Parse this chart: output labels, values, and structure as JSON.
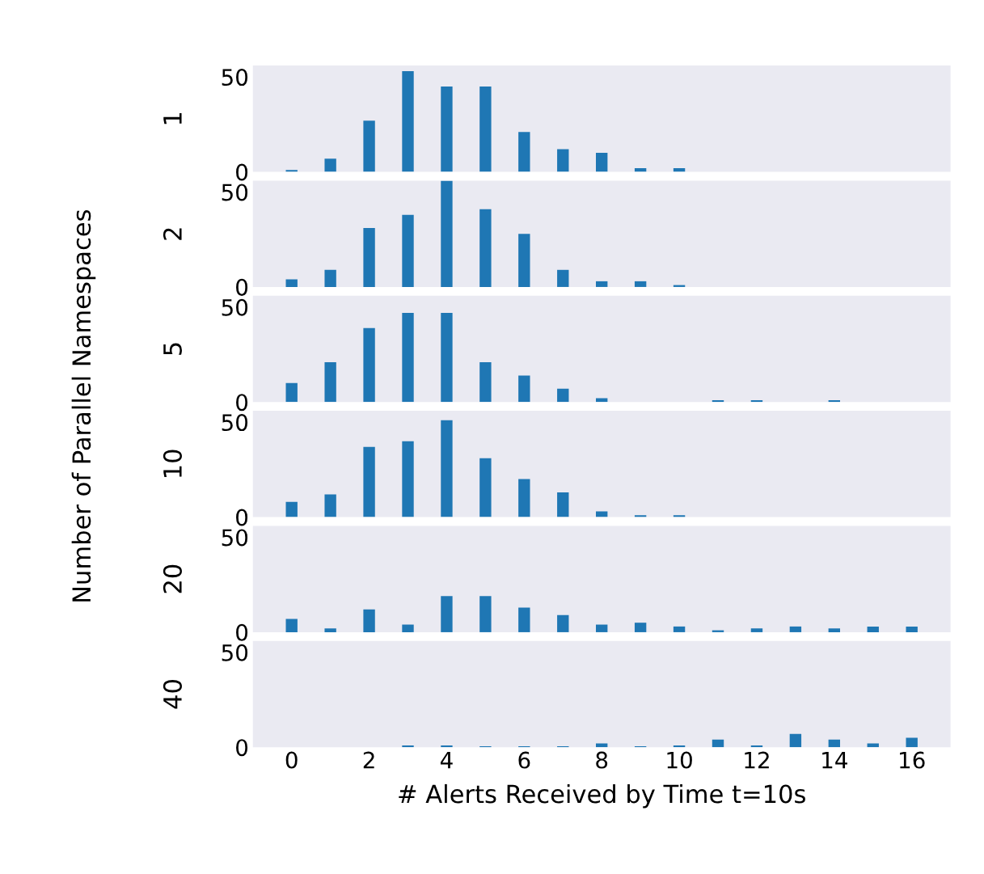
{
  "chart_data": [
    {
      "type": "bar",
      "ylabel": "1",
      "annotations": [
        "Number of Parallel Namespaces"
      ],
      "x": [
        0,
        1,
        2,
        3,
        4,
        5,
        6,
        7,
        8,
        9,
        10
      ],
      "values": [
        1,
        7,
        27,
        53,
        45,
        45,
        21,
        12,
        10,
        2,
        2
      ],
      "color": "#1f77b4",
      "xlim": [
        -1,
        17
      ],
      "ylim": [
        0,
        56
      ],
      "yticks": [
        0,
        50
      ],
      "tick_labels": "y",
      "grid": false
    },
    {
      "type": "bar",
      "ylabel": "2",
      "x": [
        0,
        1,
        2,
        3,
        4,
        5,
        6,
        7,
        8,
        9,
        10
      ],
      "values": [
        4,
        9,
        31,
        38,
        56,
        41,
        28,
        9,
        3,
        3,
        1
      ],
      "color": "#1f77b4",
      "xlim": [
        -1,
        17
      ],
      "ylim": [
        0,
        56
      ],
      "yticks": [
        0,
        50
      ],
      "tick_labels": "y",
      "grid": false
    },
    {
      "type": "bar",
      "ylabel": "5",
      "x": [
        0,
        1,
        2,
        3,
        4,
        5,
        6,
        7,
        8,
        11,
        12,
        14
      ],
      "values": [
        10,
        21,
        39,
        47,
        47,
        21,
        14,
        7,
        2,
        1,
        1,
        1
      ],
      "color": "#1f77b4",
      "xlim": [
        -1,
        17
      ],
      "ylim": [
        0,
        56
      ],
      "yticks": [
        0,
        50
      ],
      "tick_labels": "y",
      "grid": false
    },
    {
      "type": "bar",
      "ylabel": "10",
      "x": [
        0,
        1,
        2,
        3,
        4,
        5,
        6,
        7,
        8,
        9,
        10
      ],
      "values": [
        8,
        12,
        37,
        40,
        51,
        31,
        20,
        13,
        3,
        1,
        1
      ],
      "color": "#1f77b4",
      "xlim": [
        -1,
        17
      ],
      "ylim": [
        0,
        56
      ],
      "yticks": [
        0,
        50
      ],
      "tick_labels": "y",
      "grid": false
    },
    {
      "type": "bar",
      "ylabel": "20",
      "x": [
        0,
        1,
        2,
        3,
        4,
        5,
        6,
        7,
        8,
        9,
        10,
        11,
        12,
        13,
        14,
        15,
        16
      ],
      "values": [
        7,
        2,
        12,
        4,
        19,
        19,
        13,
        9,
        4,
        5,
        3,
        1,
        2,
        3,
        2,
        3,
        3
      ],
      "color": "#1f77b4",
      "xlim": [
        -1,
        17
      ],
      "ylim": [
        0,
        56
      ],
      "yticks": [
        0,
        50
      ],
      "tick_labels": "y",
      "grid": false
    },
    {
      "type": "bar",
      "ylabel": "40",
      "xlabel": "# Alerts Received by Time t=10s",
      "x": [
        3,
        4,
        5,
        6,
        7,
        8,
        9,
        10,
        11,
        12,
        13,
        14,
        15,
        16
      ],
      "values": [
        1,
        1,
        0.5,
        0.5,
        0.5,
        2,
        0.5,
        1,
        4,
        1,
        7,
        4,
        2,
        5
      ],
      "color": "#1f77b4",
      "xlim": [
        -1,
        17
      ],
      "ylim": [
        0,
        56
      ],
      "yticks": [
        0,
        50
      ],
      "xticks": [
        0,
        2,
        4,
        6,
        8,
        10,
        12,
        14,
        16
      ],
      "grid": false
    }
  ]
}
